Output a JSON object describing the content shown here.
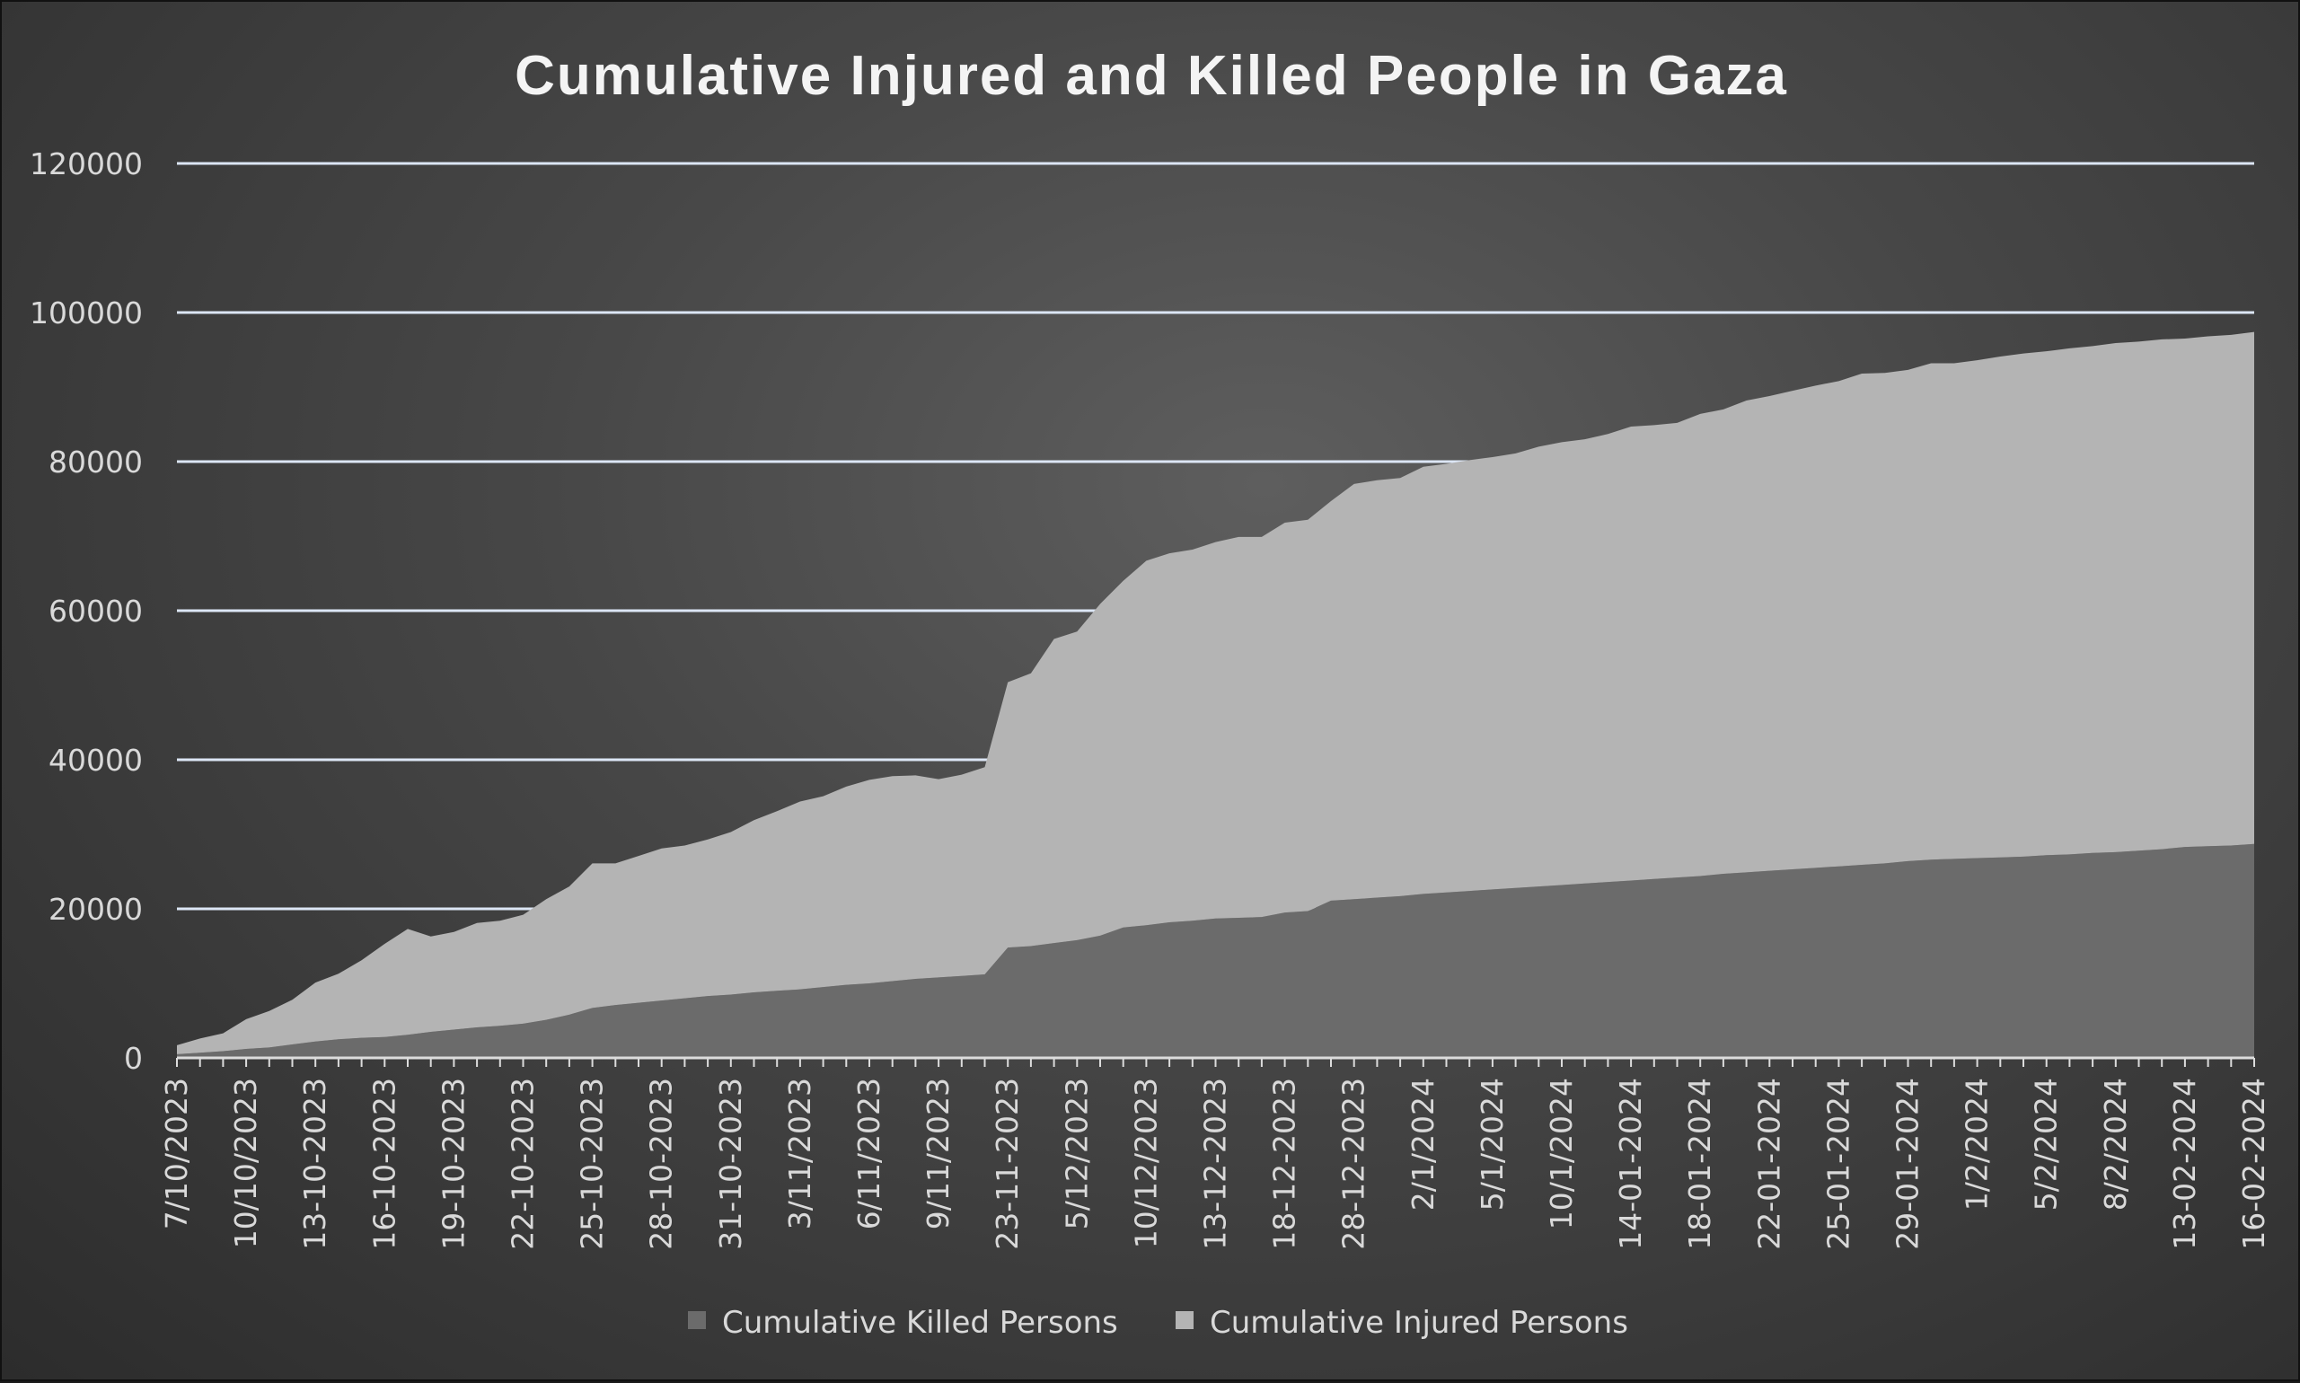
{
  "chart_data": {
    "type": "area",
    "stacked": true,
    "title": "Cumulative Injured and Killed People in Gaza",
    "xlabel": "",
    "ylabel": "",
    "ylim": [
      0,
      120000
    ],
    "yticks": [
      0,
      20000,
      40000,
      60000,
      80000,
      100000,
      120000
    ],
    "ytick_labels": [
      "0",
      "20000",
      "40000",
      "60000",
      "80000",
      "100000",
      "120000"
    ],
    "grid": true,
    "legend_position": "bottom",
    "x_tick_labels": [
      "7/10/2023",
      "10/10/2023",
      "13-10-2023",
      "16-10-2023",
      "19-10-2023",
      "22-10-2023",
      "25-10-2023",
      "28-10-2023",
      "31-10-2023",
      "3/11/2023",
      "6/11/2023",
      "9/11/2023",
      "23-11-2023",
      "5/12/2023",
      "10/12/2023",
      "13-12-2023",
      "18-12-2023",
      "28-12-2023",
      "2/1/2024",
      "5/1/2024",
      "10/1/2024",
      "14-01-2024",
      "18-01-2024",
      "22-01-2024",
      "25-01-2024",
      "29-01-2024",
      "1/2/2024",
      "5/2/2024",
      "8/2/2024",
      "13-02-2024",
      "16-02-2024"
    ],
    "x_tick_points": [
      0,
      3,
      6,
      9,
      12,
      15,
      18,
      21,
      24,
      27,
      30,
      33,
      36,
      39,
      42,
      45,
      48,
      51,
      54,
      57,
      60,
      63,
      66,
      69,
      72,
      75,
      78,
      81,
      84,
      87,
      90
    ],
    "series": [
      {
        "name": "Cumulative Killed Persons",
        "color": "#6b6b6b",
        "values": [
          500,
          700,
          900,
          1200,
          1400,
          1800,
          2200,
          2500,
          2700,
          2800,
          3100,
          3500,
          3800,
          4100,
          4300,
          4600,
          5100,
          5800,
          6700,
          7100,
          7400,
          7700,
          8000,
          8300,
          8500,
          8800,
          9000,
          9200,
          9500,
          9800,
          10000,
          10300,
          10600,
          10800,
          11000,
          11200,
          14800,
          15000,
          15400,
          15800,
          16400,
          17500,
          17800,
          18200,
          18400,
          18700,
          18800,
          18900,
          19500,
          19700,
          21100,
          21300,
          21500,
          21700,
          22000,
          22200,
          22400,
          22600,
          22800,
          23000,
          23200,
          23400,
          23600,
          23800,
          24000,
          24200,
          24400,
          24700,
          24900,
          25100,
          25300,
          25500,
          25700,
          25900,
          26100,
          26400,
          26600,
          26700,
          26800,
          26900,
          27000,
          27200,
          27300,
          27500,
          27600,
          27800,
          28000,
          28300,
          28400,
          28500,
          28700
        ]
      },
      {
        "name": "Cumulative Injured Persons",
        "color": "#b4b4b4",
        "values": [
          1200,
          1900,
          2400,
          4000,
          4900,
          6000,
          7900,
          8800,
          10400,
          12500,
          14200,
          12800,
          13100,
          14000,
          14100,
          14600,
          16200,
          17200,
          19400,
          19000,
          19700,
          20400,
          20500,
          21000,
          21800,
          23100,
          24100,
          25200,
          25600,
          26600,
          27300,
          27500,
          27300,
          26600,
          27000,
          27800,
          35600,
          36600,
          40800,
          41400,
          44500,
          46500,
          48900,
          49500,
          49800,
          50500,
          51100,
          51000,
          52300,
          52500,
          53600,
          55700,
          56000,
          56100,
          57300,
          57500,
          57800,
          58000,
          58300,
          59000,
          59400,
          59600,
          60100,
          60900,
          60900,
          61000,
          62000,
          62300,
          63300,
          63700,
          64200,
          64700,
          65100,
          65900,
          65800,
          65900,
          66600,
          66500,
          66800,
          67200,
          67500,
          67600,
          67900,
          68000,
          68300,
          68300,
          68400,
          68200,
          68400,
          68500,
          68700
        ]
      }
    ]
  }
}
